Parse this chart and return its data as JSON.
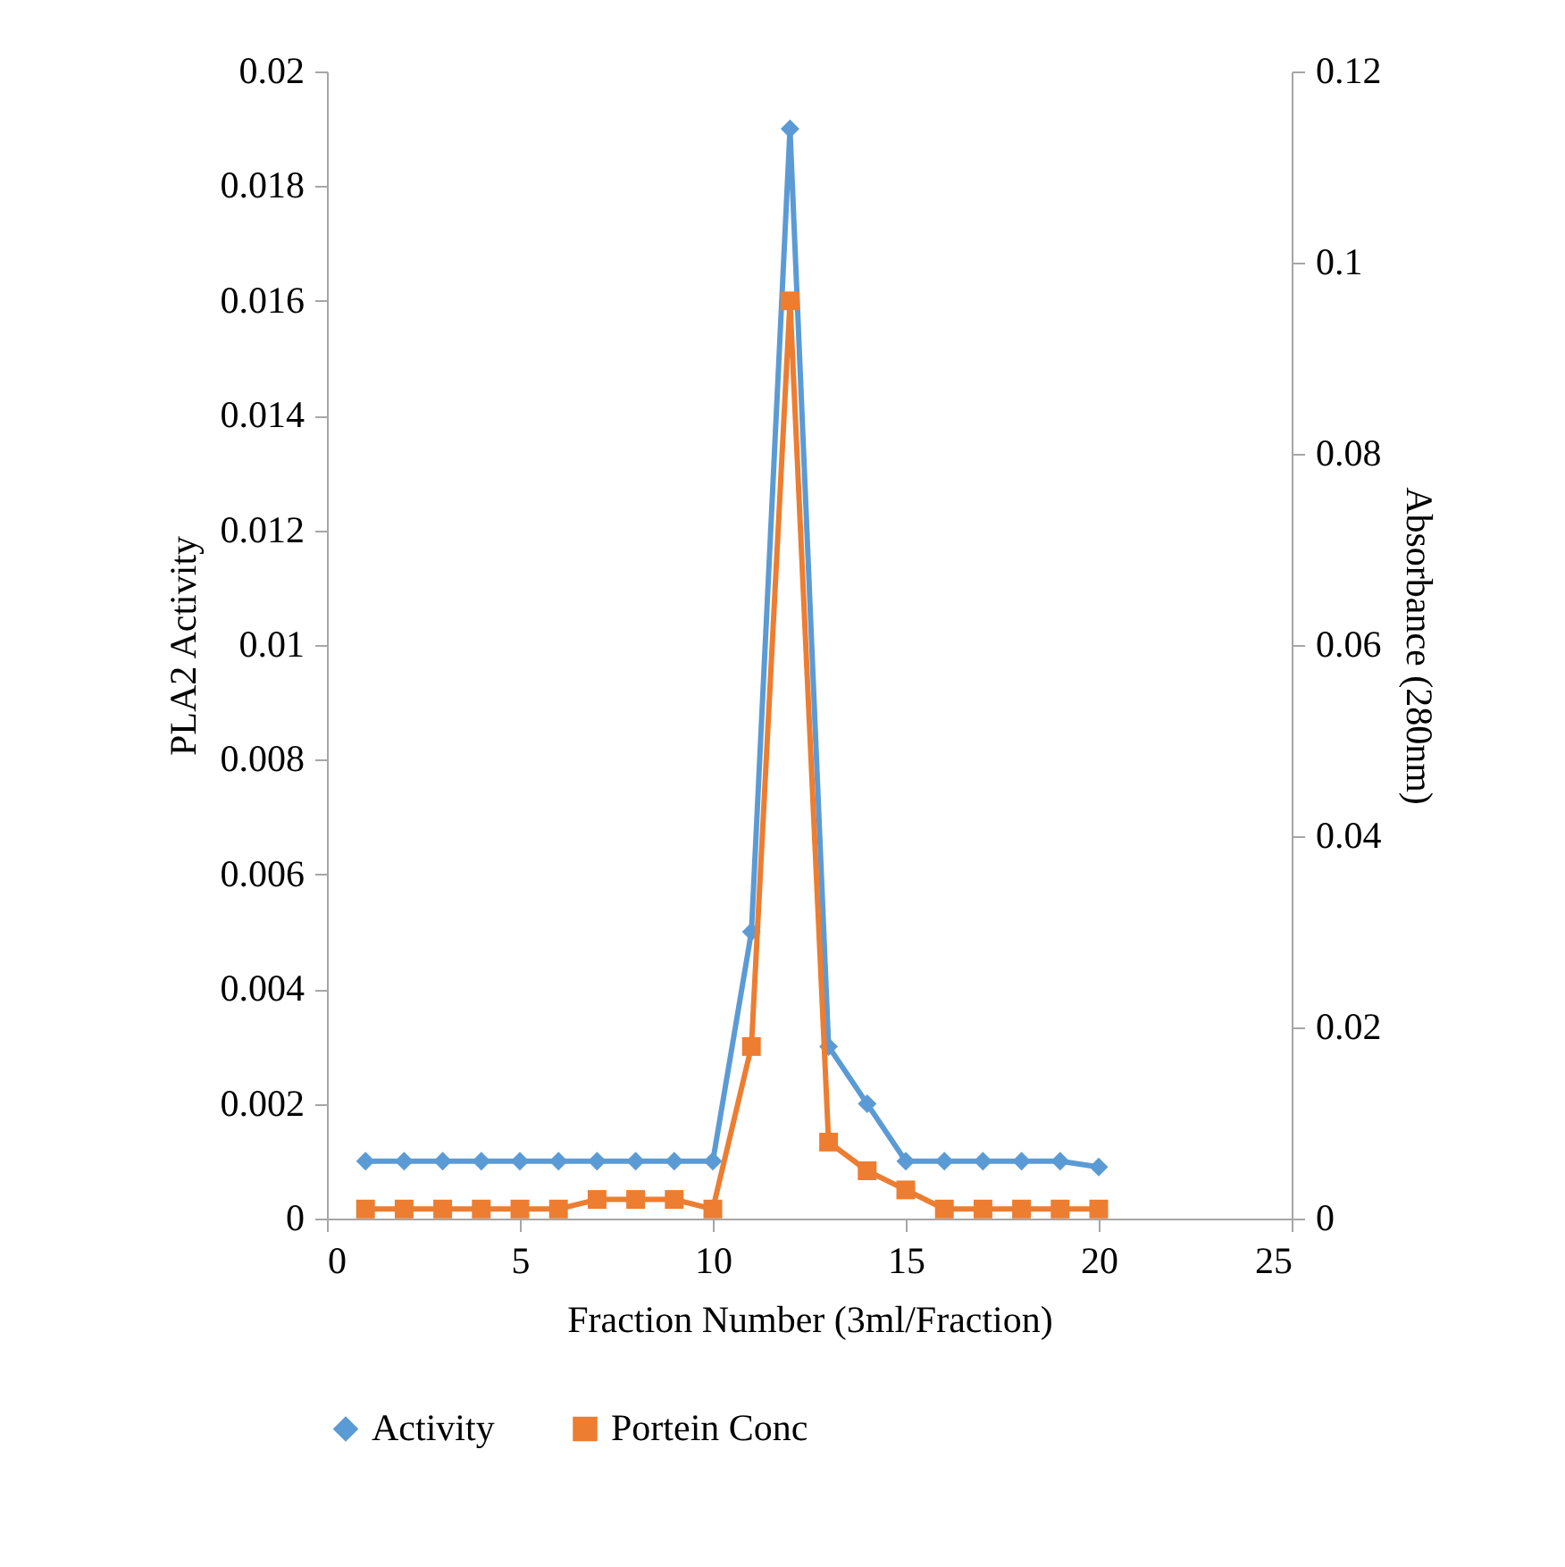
{
  "chart_data": {
    "type": "line",
    "xlabel": "Fraction Number (3ml/Fraction)",
    "ylabel": "PLA2 Activity",
    "y2label": "Absorbance (280nm)",
    "x": [
      1,
      2,
      3,
      4,
      5,
      6,
      7,
      8,
      9,
      10,
      11,
      12,
      13,
      14,
      15,
      16,
      17,
      18,
      19,
      20
    ],
    "series": [
      {
        "name": "Activity",
        "color": "#5b9bd5",
        "marker": "diamond",
        "values": [
          0.001,
          0.001,
          0.001,
          0.001,
          0.001,
          0.001,
          0.001,
          0.001,
          0.001,
          0.001,
          0.005,
          0.019,
          0.003,
          0.002,
          0.001,
          0.001,
          0.001,
          0.001,
          0.001,
          0.0009
        ]
      },
      {
        "name": "Portein Conc",
        "color": "#ed7d31",
        "marker": "square",
        "axis": "y2",
        "values": [
          0.001,
          0.001,
          0.001,
          0.001,
          0.001,
          0.001,
          0.002,
          0.002,
          0.002,
          0.001,
          0.018,
          0.096,
          0.008,
          0.005,
          0.003,
          0.001,
          0.001,
          0.001,
          0.001,
          0.001
        ]
      }
    ],
    "xlim": [
      0,
      25
    ],
    "xticks": [
      0,
      5,
      10,
      15,
      20,
      25
    ],
    "ylim": [
      0,
      0.02
    ],
    "yticks": [
      0,
      0.002,
      0.004,
      0.006,
      0.008,
      0.01,
      0.012,
      0.014,
      0.016,
      0.018,
      0.02
    ],
    "y2lim": [
      0,
      0.12
    ],
    "y2ticks": [
      0,
      0.02,
      0.04,
      0.06,
      0.08,
      0.1,
      0.12
    ],
    "grid": false,
    "legend": "bottom",
    "line_style": "solid"
  }
}
